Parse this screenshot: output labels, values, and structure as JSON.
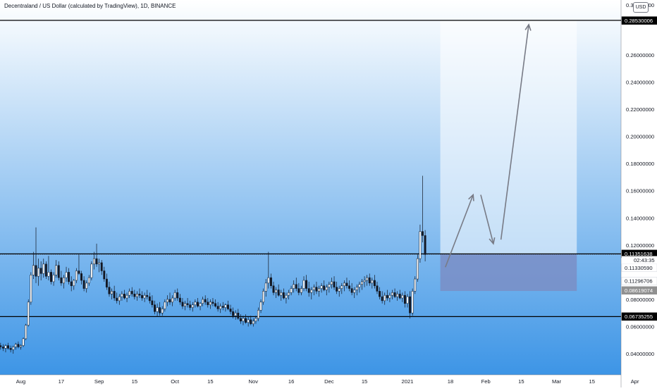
{
  "title": "Decentraland / US Dollar (calculated by TradingView), 1D, BINANCE",
  "currency_button": "USD",
  "countdown": "02:43:35",
  "colors": {
    "gradient_top": "#ffffff",
    "gradient_bottom": "#3d95e6",
    "up_candle": "#ffffff",
    "down_candle": "#131722",
    "wick": "#131722",
    "level_line": "#000000",
    "projection_box": "#ffffff",
    "target_box": "#7a8ec6",
    "arrow": "#787b86",
    "tag_black": "#000000",
    "tag_gray": "#909090"
  },
  "chart_data": {
    "type": "candlestick",
    "title": "Decentraland / US Dollar (calculated by TradingView), 1D, BINANCE",
    "ylim": [
      0.03,
      0.3
    ],
    "price_ticks": [
      "0.04000000",
      "0.06000000",
      "0.08000000",
      "0.12000000",
      "0.14000000",
      "0.16000000",
      "0.18000000",
      "0.20000000",
      "0.22000000",
      "0.24000000",
      "0.26000000"
    ],
    "top_partial_tick": "0.30000000",
    "x_ticks": [
      {
        "label": "Aug",
        "day": 0
      },
      {
        "label": "17",
        "day": 16
      },
      {
        "label": "Sep",
        "day": 31
      },
      {
        "label": "15",
        "day": 45
      },
      {
        "label": "Oct",
        "day": 61
      },
      {
        "label": "15",
        "day": 75
      },
      {
        "label": "Nov",
        "day": 92
      },
      {
        "label": "16",
        "day": 107
      },
      {
        "label": "Dec",
        "day": 122
      },
      {
        "label": "15",
        "day": 136
      },
      {
        "label": "2021",
        "day": 153
      },
      {
        "label": "18",
        "day": 170
      },
      {
        "label": "Feb",
        "day": 184
      },
      {
        "label": "15",
        "day": 198
      },
      {
        "label": "Mar",
        "day": 212
      },
      {
        "label": "15",
        "day": 226
      },
      {
        "label": "Apr",
        "day": 243
      }
    ],
    "candles": [
      [
        -8,
        0.046,
        0.048,
        0.043,
        0.045
      ],
      [
        -7,
        0.045,
        0.047,
        0.042,
        0.044
      ],
      [
        -6,
        0.044,
        0.047,
        0.041,
        0.046
      ],
      [
        -5,
        0.046,
        0.048,
        0.043,
        0.044
      ],
      [
        -4,
        0.044,
        0.046,
        0.041,
        0.043
      ],
      [
        -3,
        0.043,
        0.046,
        0.04,
        0.045
      ],
      [
        -2,
        0.045,
        0.048,
        0.043,
        0.047
      ],
      [
        -1,
        0.047,
        0.049,
        0.044,
        0.045
      ],
      [
        0,
        0.045,
        0.047,
        0.043,
        0.046
      ],
      [
        1,
        0.046,
        0.052,
        0.045,
        0.051
      ],
      [
        2,
        0.051,
        0.062,
        0.05,
        0.061
      ],
      [
        3,
        0.061,
        0.08,
        0.06,
        0.078
      ],
      [
        4,
        0.078,
        0.1,
        0.076,
        0.098
      ],
      [
        5,
        0.098,
        0.115,
        0.095,
        0.105
      ],
      [
        6,
        0.105,
        0.133,
        0.092,
        0.097
      ],
      [
        7,
        0.097,
        0.11,
        0.09,
        0.103
      ],
      [
        8,
        0.103,
        0.108,
        0.094,
        0.099
      ],
      [
        9,
        0.099,
        0.11,
        0.096,
        0.106
      ],
      [
        10,
        0.106,
        0.108,
        0.095,
        0.097
      ],
      [
        11,
        0.097,
        0.112,
        0.094,
        0.1
      ],
      [
        12,
        0.1,
        0.102,
        0.091,
        0.093
      ],
      [
        13,
        0.093,
        0.1,
        0.09,
        0.098
      ],
      [
        14,
        0.098,
        0.109,
        0.096,
        0.105
      ],
      [
        15,
        0.105,
        0.108,
        0.094,
        0.096
      ],
      [
        16,
        0.096,
        0.101,
        0.09,
        0.092
      ],
      [
        17,
        0.092,
        0.098,
        0.088,
        0.096
      ],
      [
        18,
        0.096,
        0.104,
        0.093,
        0.1
      ],
      [
        19,
        0.1,
        0.103,
        0.091,
        0.093
      ],
      [
        20,
        0.093,
        0.097,
        0.086,
        0.09
      ],
      [
        21,
        0.09,
        0.095,
        0.087,
        0.094
      ],
      [
        22,
        0.094,
        0.103,
        0.092,
        0.101
      ],
      [
        23,
        0.101,
        0.113,
        0.098,
        0.099
      ],
      [
        24,
        0.099,
        0.101,
        0.091,
        0.094
      ],
      [
        25,
        0.094,
        0.097,
        0.086,
        0.088
      ],
      [
        26,
        0.088,
        0.094,
        0.085,
        0.092
      ],
      [
        27,
        0.092,
        0.098,
        0.09,
        0.096
      ],
      [
        28,
        0.096,
        0.108,
        0.094,
        0.106
      ],
      [
        29,
        0.106,
        0.115,
        0.102,
        0.11
      ],
      [
        30,
        0.11,
        0.121,
        0.104,
        0.106
      ],
      [
        31,
        0.106,
        0.11,
        0.1,
        0.107
      ],
      [
        32,
        0.107,
        0.109,
        0.098,
        0.101
      ],
      [
        33,
        0.101,
        0.104,
        0.093,
        0.095
      ],
      [
        34,
        0.095,
        0.099,
        0.087,
        0.089
      ],
      [
        35,
        0.089,
        0.093,
        0.082,
        0.084
      ],
      [
        36,
        0.084,
        0.088,
        0.08,
        0.086
      ],
      [
        37,
        0.086,
        0.09,
        0.079,
        0.081
      ],
      [
        38,
        0.081,
        0.085,
        0.077,
        0.079
      ],
      [
        39,
        0.079,
        0.084,
        0.076,
        0.082
      ],
      [
        40,
        0.082,
        0.086,
        0.079,
        0.084
      ],
      [
        41,
        0.084,
        0.087,
        0.08,
        0.081
      ],
      [
        42,
        0.081,
        0.085,
        0.078,
        0.083
      ],
      [
        43,
        0.083,
        0.088,
        0.081,
        0.086
      ],
      [
        44,
        0.086,
        0.089,
        0.082,
        0.084
      ],
      [
        45,
        0.084,
        0.087,
        0.08,
        0.082
      ],
      [
        46,
        0.082,
        0.086,
        0.079,
        0.084
      ],
      [
        47,
        0.084,
        0.088,
        0.081,
        0.083
      ],
      [
        48,
        0.083,
        0.086,
        0.079,
        0.081
      ],
      [
        49,
        0.081,
        0.085,
        0.078,
        0.083
      ],
      [
        50,
        0.083,
        0.087,
        0.08,
        0.082
      ],
      [
        51,
        0.082,
        0.085,
        0.077,
        0.079
      ],
      [
        52,
        0.079,
        0.083,
        0.074,
        0.076
      ],
      [
        53,
        0.076,
        0.079,
        0.069,
        0.071
      ],
      [
        54,
        0.071,
        0.077,
        0.067,
        0.074
      ],
      [
        55,
        0.074,
        0.078,
        0.068,
        0.07
      ],
      [
        56,
        0.07,
        0.075,
        0.068,
        0.073
      ],
      [
        57,
        0.073,
        0.08,
        0.071,
        0.078
      ],
      [
        58,
        0.078,
        0.083,
        0.075,
        0.08
      ],
      [
        59,
        0.08,
        0.085,
        0.076,
        0.078
      ],
      [
        60,
        0.078,
        0.083,
        0.075,
        0.081
      ],
      [
        61,
        0.081,
        0.087,
        0.079,
        0.085
      ],
      [
        62,
        0.085,
        0.088,
        0.079,
        0.081
      ],
      [
        63,
        0.081,
        0.084,
        0.076,
        0.078
      ],
      [
        64,
        0.078,
        0.081,
        0.073,
        0.075
      ],
      [
        65,
        0.075,
        0.079,
        0.072,
        0.077
      ],
      [
        66,
        0.077,
        0.081,
        0.074,
        0.076
      ],
      [
        67,
        0.076,
        0.079,
        0.072,
        0.074
      ],
      [
        68,
        0.074,
        0.078,
        0.071,
        0.076
      ],
      [
        69,
        0.076,
        0.08,
        0.074,
        0.078
      ],
      [
        70,
        0.078,
        0.081,
        0.074,
        0.075
      ],
      [
        71,
        0.075,
        0.078,
        0.072,
        0.077
      ],
      [
        72,
        0.077,
        0.082,
        0.075,
        0.08
      ],
      [
        73,
        0.08,
        0.083,
        0.076,
        0.078
      ],
      [
        74,
        0.078,
        0.081,
        0.074,
        0.076
      ],
      [
        75,
        0.076,
        0.08,
        0.073,
        0.078
      ],
      [
        76,
        0.078,
        0.081,
        0.075,
        0.077
      ],
      [
        77,
        0.077,
        0.08,
        0.074,
        0.075
      ],
      [
        78,
        0.075,
        0.078,
        0.071,
        0.073
      ],
      [
        79,
        0.073,
        0.077,
        0.07,
        0.075
      ],
      [
        80,
        0.075,
        0.078,
        0.072,
        0.074
      ],
      [
        81,
        0.074,
        0.077,
        0.071,
        0.076
      ],
      [
        82,
        0.076,
        0.079,
        0.072,
        0.073
      ],
      [
        83,
        0.073,
        0.076,
        0.069,
        0.071
      ],
      [
        84,
        0.071,
        0.074,
        0.066,
        0.068
      ],
      [
        85,
        0.068,
        0.072,
        0.065,
        0.07
      ],
      [
        86,
        0.07,
        0.073,
        0.065,
        0.066
      ],
      [
        87,
        0.066,
        0.069,
        0.062,
        0.064
      ],
      [
        88,
        0.064,
        0.068,
        0.061,
        0.066
      ],
      [
        89,
        0.066,
        0.069,
        0.062,
        0.063
      ],
      [
        90,
        0.063,
        0.067,
        0.06,
        0.065
      ],
      [
        91,
        0.065,
        0.068,
        0.061,
        0.062
      ],
      [
        92,
        0.062,
        0.066,
        0.06,
        0.064
      ],
      [
        93,
        0.064,
        0.068,
        0.062,
        0.066
      ],
      [
        94,
        0.066,
        0.074,
        0.064,
        0.072
      ],
      [
        95,
        0.072,
        0.08,
        0.07,
        0.078
      ],
      [
        96,
        0.078,
        0.088,
        0.076,
        0.086
      ],
      [
        97,
        0.086,
        0.095,
        0.082,
        0.092
      ],
      [
        98,
        0.092,
        0.115,
        0.088,
        0.096
      ],
      [
        99,
        0.096,
        0.099,
        0.088,
        0.09
      ],
      [
        100,
        0.09,
        0.093,
        0.083,
        0.085
      ],
      [
        101,
        0.085,
        0.089,
        0.081,
        0.087
      ],
      [
        102,
        0.087,
        0.091,
        0.082,
        0.083
      ],
      [
        103,
        0.083,
        0.087,
        0.079,
        0.085
      ],
      [
        104,
        0.085,
        0.088,
        0.08,
        0.081
      ],
      [
        105,
        0.081,
        0.085,
        0.077,
        0.083
      ],
      [
        106,
        0.083,
        0.087,
        0.08,
        0.085
      ],
      [
        107,
        0.085,
        0.09,
        0.083,
        0.088
      ],
      [
        108,
        0.088,
        0.094,
        0.085,
        0.091
      ],
      [
        109,
        0.091,
        0.096,
        0.086,
        0.088
      ],
      [
        110,
        0.088,
        0.092,
        0.083,
        0.085
      ],
      [
        111,
        0.085,
        0.09,
        0.083,
        0.088
      ],
      [
        112,
        0.088,
        0.097,
        0.086,
        0.094
      ],
      [
        113,
        0.094,
        0.098,
        0.086,
        0.088
      ],
      [
        114,
        0.088,
        0.093,
        0.082,
        0.085
      ],
      [
        115,
        0.085,
        0.089,
        0.08,
        0.087
      ],
      [
        116,
        0.087,
        0.091,
        0.083,
        0.089
      ],
      [
        117,
        0.089,
        0.093,
        0.084,
        0.086
      ],
      [
        118,
        0.086,
        0.09,
        0.082,
        0.088
      ],
      [
        119,
        0.088,
        0.092,
        0.085,
        0.09
      ],
      [
        120,
        0.09,
        0.094,
        0.086,
        0.087
      ],
      [
        121,
        0.087,
        0.091,
        0.083,
        0.089
      ],
      [
        122,
        0.089,
        0.093,
        0.085,
        0.091
      ],
      [
        123,
        0.091,
        0.096,
        0.088,
        0.093
      ],
      [
        124,
        0.093,
        0.097,
        0.087,
        0.089
      ],
      [
        125,
        0.089,
        0.093,
        0.084,
        0.086
      ],
      [
        126,
        0.086,
        0.09,
        0.082,
        0.088
      ],
      [
        127,
        0.088,
        0.092,
        0.084,
        0.09
      ],
      [
        128,
        0.09,
        0.094,
        0.086,
        0.092
      ],
      [
        129,
        0.092,
        0.096,
        0.088,
        0.09
      ],
      [
        130,
        0.09,
        0.094,
        0.086,
        0.088
      ],
      [
        131,
        0.088,
        0.092,
        0.083,
        0.085
      ],
      [
        132,
        0.085,
        0.089,
        0.081,
        0.087
      ],
      [
        133,
        0.087,
        0.091,
        0.083,
        0.089
      ],
      [
        134,
        0.089,
        0.093,
        0.085,
        0.091
      ],
      [
        135,
        0.091,
        0.095,
        0.087,
        0.093
      ],
      [
        136,
        0.093,
        0.097,
        0.089,
        0.094
      ],
      [
        137,
        0.094,
        0.098,
        0.09,
        0.096
      ],
      [
        138,
        0.096,
        0.099,
        0.09,
        0.092
      ],
      [
        139,
        0.092,
        0.096,
        0.088,
        0.094
      ],
      [
        140,
        0.094,
        0.098,
        0.088,
        0.09
      ],
      [
        141,
        0.09,
        0.093,
        0.084,
        0.086
      ],
      [
        142,
        0.086,
        0.089,
        0.08,
        0.082
      ],
      [
        143,
        0.082,
        0.086,
        0.077,
        0.079
      ],
      [
        144,
        0.079,
        0.085,
        0.076,
        0.083
      ],
      [
        145,
        0.083,
        0.087,
        0.079,
        0.081
      ],
      [
        146,
        0.081,
        0.085,
        0.078,
        0.083
      ],
      [
        147,
        0.083,
        0.087,
        0.08,
        0.085
      ],
      [
        148,
        0.085,
        0.088,
        0.081,
        0.082
      ],
      [
        149,
        0.082,
        0.086,
        0.079,
        0.084
      ],
      [
        150,
        0.084,
        0.087,
        0.08,
        0.081
      ],
      [
        151,
        0.081,
        0.085,
        0.078,
        0.083
      ],
      [
        152,
        0.083,
        0.086,
        0.074,
        0.077
      ],
      [
        153,
        0.077,
        0.084,
        0.074,
        0.082
      ],
      [
        154,
        0.082,
        0.086,
        0.066,
        0.07
      ],
      [
        155,
        0.07,
        0.088,
        0.068,
        0.086
      ],
      [
        156,
        0.086,
        0.097,
        0.084,
        0.095
      ],
      [
        157,
        0.095,
        0.113,
        0.093,
        0.11
      ],
      [
        158,
        0.11,
        0.135,
        0.107,
        0.13
      ],
      [
        159,
        0.13,
        0.171,
        0.122,
        0.127
      ],
      [
        160,
        0.127,
        0.131,
        0.108,
        0.113
      ]
    ],
    "levels": [
      {
        "name": "top-level",
        "value": 0.28543364,
        "label": "0.28543364"
      },
      {
        "name": "resistance-level",
        "value": 0.11351638,
        "label": "0.11351638"
      },
      {
        "name": "support-level",
        "value": 0.06735255,
        "label": "0.06735255"
      }
    ],
    "price_tags": [
      {
        "name": "target-price-tag",
        "value": 0.2853,
        "label": "0.28530006",
        "style": "black"
      },
      {
        "name": "resistance-price-tag",
        "value": 0.11351638,
        "label": "0.11351638",
        "style": "black"
      },
      {
        "name": "last-price-tag",
        "value": 0.1033,
        "label": "0.11330590",
        "style": "white",
        "countdown": true
      },
      {
        "name": "low-price-tag",
        "value": 0.0936,
        "label": "0.11296706",
        "style": "white"
      },
      {
        "name": "stop-price-tag",
        "value": 0.0866,
        "label": "0.08619074",
        "style": "gray"
      },
      {
        "name": "support-price-tag",
        "value": 0.06735255,
        "label": "0.06735255",
        "style": "black"
      }
    ],
    "projection": {
      "start_day": 166,
      "end_day": 220,
      "entry": 0.11351638,
      "target": 0.2853,
      "stop": 0.08619074
    },
    "arrows": [
      {
        "name": "projection-arrow-up-1",
        "from": [
          168,
          0.1037
        ],
        "to": [
          179,
          0.157
        ]
      },
      {
        "name": "projection-arrow-down",
        "from": [
          182,
          0.157
        ],
        "to": [
          187,
          0.121
        ]
      },
      {
        "name": "projection-arrow-up-2",
        "from": [
          190,
          0.124
        ],
        "to": [
          201,
          0.2823
        ]
      }
    ]
  }
}
